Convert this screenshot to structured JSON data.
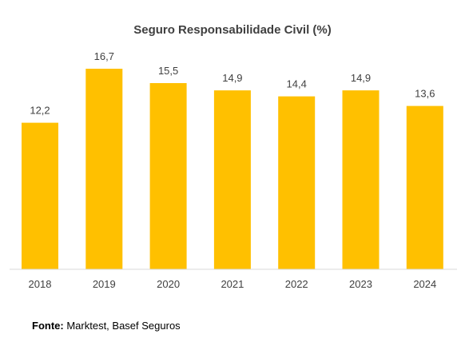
{
  "chart_data": {
    "type": "bar",
    "title": "Seguro Responsabilidade Civil (%)",
    "categories": [
      "2018",
      "2019",
      "2020",
      "2021",
      "2022",
      "2023",
      "2024"
    ],
    "values": [
      12.2,
      16.7,
      15.5,
      14.9,
      14.4,
      14.9,
      13.6
    ],
    "data_labels": [
      "12,2",
      "16,7",
      "15,5",
      "14,9",
      "14,4",
      "14,9",
      "13,6"
    ],
    "xlabel": "",
    "ylabel": "",
    "ylim": [
      0,
      16.7
    ],
    "grid": false,
    "legend": "none",
    "bar_color": "#FFC000",
    "axis_color": "#D9D9D9"
  },
  "source": {
    "label": "Fonte:",
    "text": "Marktest, Basef Seguros"
  }
}
